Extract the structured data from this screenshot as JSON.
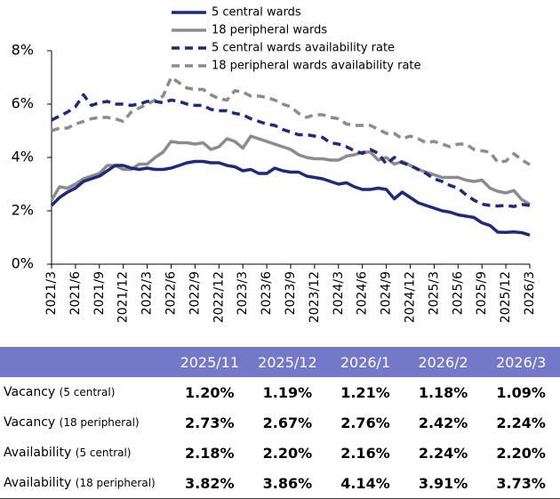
{
  "chart_data": {
    "type": "line",
    "categories": [
      "2021/3",
      null,
      null,
      "2021/6",
      null,
      null,
      "2021/9",
      null,
      null,
      "2021/12",
      null,
      null,
      "2022/3",
      null,
      null,
      "2022/6",
      null,
      null,
      "2022/9",
      null,
      null,
      "2022/12",
      null,
      null,
      "2023/3",
      null,
      null,
      "2023/6",
      null,
      null,
      "2023/9",
      null,
      null,
      "2023/12",
      null,
      null,
      "2024/3",
      null,
      null,
      "2024/6",
      null,
      null,
      "2024/9",
      null,
      null,
      "2024/12",
      null,
      null,
      "2025/3",
      null,
      null,
      "2025/6",
      null,
      null,
      "2025/9",
      null,
      null,
      "2025/12",
      null,
      null,
      "2026/3"
    ],
    "series": [
      {
        "name": "5 central wards",
        "color": "#1f2a7a",
        "line_style": "solid",
        "values": [
          2.2,
          2.5,
          2.7,
          2.85,
          3.1,
          3.2,
          3.3,
          3.5,
          3.7,
          3.7,
          3.6,
          3.55,
          3.6,
          3.55,
          3.55,
          3.6,
          3.7,
          3.8,
          3.85,
          3.85,
          3.8,
          3.8,
          3.7,
          3.65,
          3.5,
          3.55,
          3.4,
          3.4,
          3.6,
          3.5,
          3.45,
          3.45,
          3.3,
          3.25,
          3.2,
          3.1,
          3.0,
          3.05,
          2.9,
          2.8,
          2.8,
          2.85,
          2.8,
          2.45,
          2.7,
          2.5,
          2.3,
          2.2,
          2.1,
          2.0,
          1.95,
          1.85,
          1.8,
          1.75,
          1.55,
          1.45,
          1.2,
          1.19,
          1.21,
          1.18,
          1.09
        ]
      },
      {
        "name": "18 peripheral wards",
        "color": "#8c8c8c",
        "line_style": "solid",
        "values": [
          2.4,
          2.9,
          2.85,
          3.0,
          3.2,
          3.3,
          3.4,
          3.7,
          3.7,
          3.55,
          3.55,
          3.75,
          3.75,
          4.0,
          4.2,
          4.6,
          4.55,
          4.55,
          4.5,
          4.55,
          4.3,
          4.4,
          4.7,
          4.6,
          4.35,
          4.8,
          4.7,
          4.6,
          4.5,
          4.4,
          4.3,
          4.1,
          4.0,
          3.95,
          3.95,
          3.9,
          3.9,
          4.05,
          4.1,
          4.2,
          4.2,
          3.9,
          4.0,
          3.75,
          3.85,
          3.7,
          3.55,
          3.45,
          3.35,
          3.25,
          3.25,
          3.25,
          3.15,
          3.1,
          3.15,
          2.85,
          2.73,
          2.67,
          2.76,
          2.42,
          2.24
        ]
      },
      {
        "name": "5 central wards availability rate",
        "color": "#1f2a7a",
        "line_style": "dashed",
        "values": [
          5.4,
          5.55,
          5.7,
          5.9,
          6.35,
          5.95,
          6.05,
          6.1,
          6.0,
          6.0,
          5.95,
          6.0,
          6.1,
          6.1,
          6.05,
          6.15,
          6.1,
          6.0,
          5.95,
          5.95,
          5.8,
          5.75,
          5.75,
          5.65,
          5.6,
          5.45,
          5.35,
          5.25,
          5.2,
          5.05,
          4.95,
          4.85,
          4.85,
          4.8,
          4.75,
          4.55,
          4.5,
          4.4,
          4.25,
          4.15,
          4.3,
          4.15,
          3.75,
          4.0,
          3.8,
          3.7,
          3.55,
          3.4,
          3.2,
          3.1,
          2.95,
          2.85,
          2.6,
          2.4,
          2.25,
          2.2,
          2.18,
          2.2,
          2.16,
          2.24,
          2.2
        ]
      },
      {
        "name": "18 peripheral wards availability rate",
        "color": "#8c8c8c",
        "line_style": "dashed",
        "values": [
          5.0,
          5.1,
          5.1,
          5.25,
          5.35,
          5.45,
          5.5,
          5.5,
          5.45,
          5.35,
          5.7,
          5.85,
          6.0,
          6.15,
          6.3,
          7.0,
          6.8,
          6.6,
          6.55,
          6.55,
          6.35,
          6.2,
          6.15,
          6.5,
          6.45,
          6.3,
          6.3,
          6.25,
          6.15,
          6.0,
          5.9,
          5.65,
          5.5,
          5.6,
          5.6,
          5.5,
          5.45,
          5.25,
          5.2,
          5.2,
          5.2,
          5.05,
          4.9,
          4.9,
          4.7,
          4.8,
          4.7,
          4.55,
          4.6,
          4.5,
          4.4,
          4.5,
          4.5,
          4.3,
          4.25,
          4.2,
          3.82,
          3.86,
          4.14,
          3.91,
          3.73
        ]
      }
    ],
    "ylim": [
      0,
      8
    ],
    "yticks": [
      {
        "value": 0,
        "label": "0%"
      },
      {
        "value": 2,
        "label": "2%"
      },
      {
        "value": 4,
        "label": "4%"
      },
      {
        "value": 6,
        "label": "6%"
      },
      {
        "value": 8,
        "label": "8%"
      }
    ],
    "grid": false,
    "legend": "top"
  },
  "table": {
    "header": [
      "2025/11",
      "2025/12",
      "2026/1",
      "2026/2",
      "2026/3"
    ],
    "rows": [
      {
        "label": "Vacancy",
        "sub": "(5 central)",
        "cells": [
          "1.20%",
          "1.19%",
          "1.21%",
          "1.18%",
          "1.09%"
        ]
      },
      {
        "label": "Vacancy",
        "sub": "(18 peripheral)",
        "cells": [
          "2.73%",
          "2.67%",
          "2.76%",
          "2.42%",
          "2.24%"
        ]
      },
      {
        "label": "Availability",
        "sub": "(5 central)",
        "cells": [
          "2.18%",
          "2.20%",
          "2.16%",
          "2.24%",
          "2.20%"
        ]
      },
      {
        "label": "Availability",
        "sub": "(18 peripheral)",
        "cells": [
          "3.82%",
          "3.86%",
          "4.14%",
          "3.91%",
          "3.73%"
        ]
      }
    ]
  }
}
